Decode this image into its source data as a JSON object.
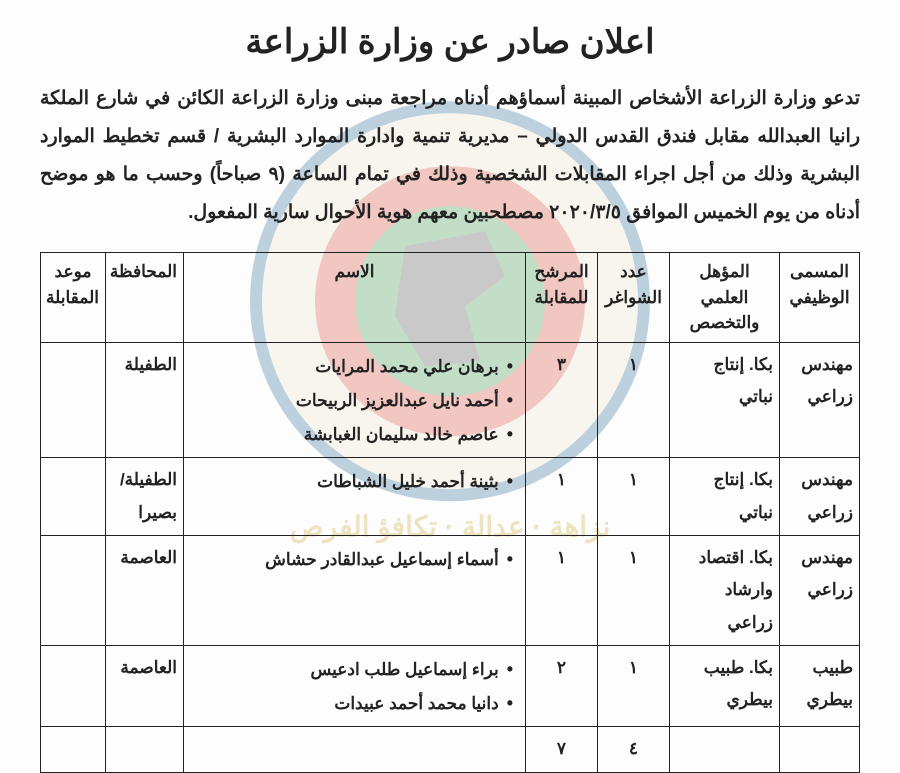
{
  "title": "اعلان صادر عن وزارة الزراعة",
  "paragraph": "تدعو وزارة الزراعة الأشخاص المبينة أسماؤهم أدناه مراجعة مبنى وزارة الزراعة الكائن في شارع الملكة رانيا العبدالله مقابل فندق القدس الدولي – مديرية تنمية وادارة الموارد البشرية / قسم تخطيط الموارد البشرية وذلك من أجل اجراء المقابلات الشخصية وذلك في تمام الساعة (٩ صباحاً) وحسب ما هو موضح أدناه من يوم الخميس الموافق ٢٠٢٠/٣/٥ مصطحبين معهم هوية الأحوال سارية المفعول.",
  "columns": {
    "position": "المسمى الوظيفي",
    "qualification": "المؤهل العلمي والتخصص",
    "vacancies": "عدد الشواغر",
    "candidates": "المرشح للمقابلة",
    "name": "الاسم",
    "governorate": "المحافظة",
    "time": "موعد المقابلة"
  },
  "rows": [
    {
      "position": "مهندس زراعي",
      "qualification": "بكا. إنتاج نباتي",
      "vacancies": "١",
      "candidates": "٣",
      "names": [
        "برهان علي محمد المرايات",
        "أحمد نايل عبدالعزيز الربيحات",
        "عاصم خالد سليمان الغبابشة"
      ],
      "governorate": "الطفيلة",
      "time": ""
    },
    {
      "position": "مهندس زراعي",
      "qualification": "بكا. إنتاج نباتي",
      "vacancies": "١",
      "candidates": "١",
      "names": [
        "بثينة أحمد خليل الشباطات"
      ],
      "governorate": "الطفيلة/ بصيرا",
      "time": ""
    },
    {
      "position": "مهندس زراعي",
      "qualification": "بكا. اقتصاد وارشاد زراعي",
      "vacancies": "١",
      "candidates": "١",
      "names": [
        "أسماء إسماعيل عبدالقادر حشاش"
      ],
      "governorate": "العاصمة",
      "time": ""
    },
    {
      "position": "طبيب بيطري",
      "qualification": "بكا. طبيب بيطري",
      "vacancies": "١",
      "candidates": "٢",
      "names": [
        "براء إسماعيل طلب ادعيس",
        "دانيا محمد أحمد عبيدات"
      ],
      "governorate": "العاصمة",
      "time": ""
    }
  ],
  "totals": {
    "vacancies": "٤",
    "candidates": "٧"
  },
  "watermark": {
    "outer": "#1b5e8f",
    "ring": "#e8e3c8",
    "mid": "#d93a2b",
    "inner": "#2f8f3e",
    "shape": "#454545",
    "motto": "نزاهة · عدالة · تكافؤ الفرص",
    "r_outer": 200,
    "r_ring": 188,
    "r_mid": 135,
    "r_inner": 95
  }
}
